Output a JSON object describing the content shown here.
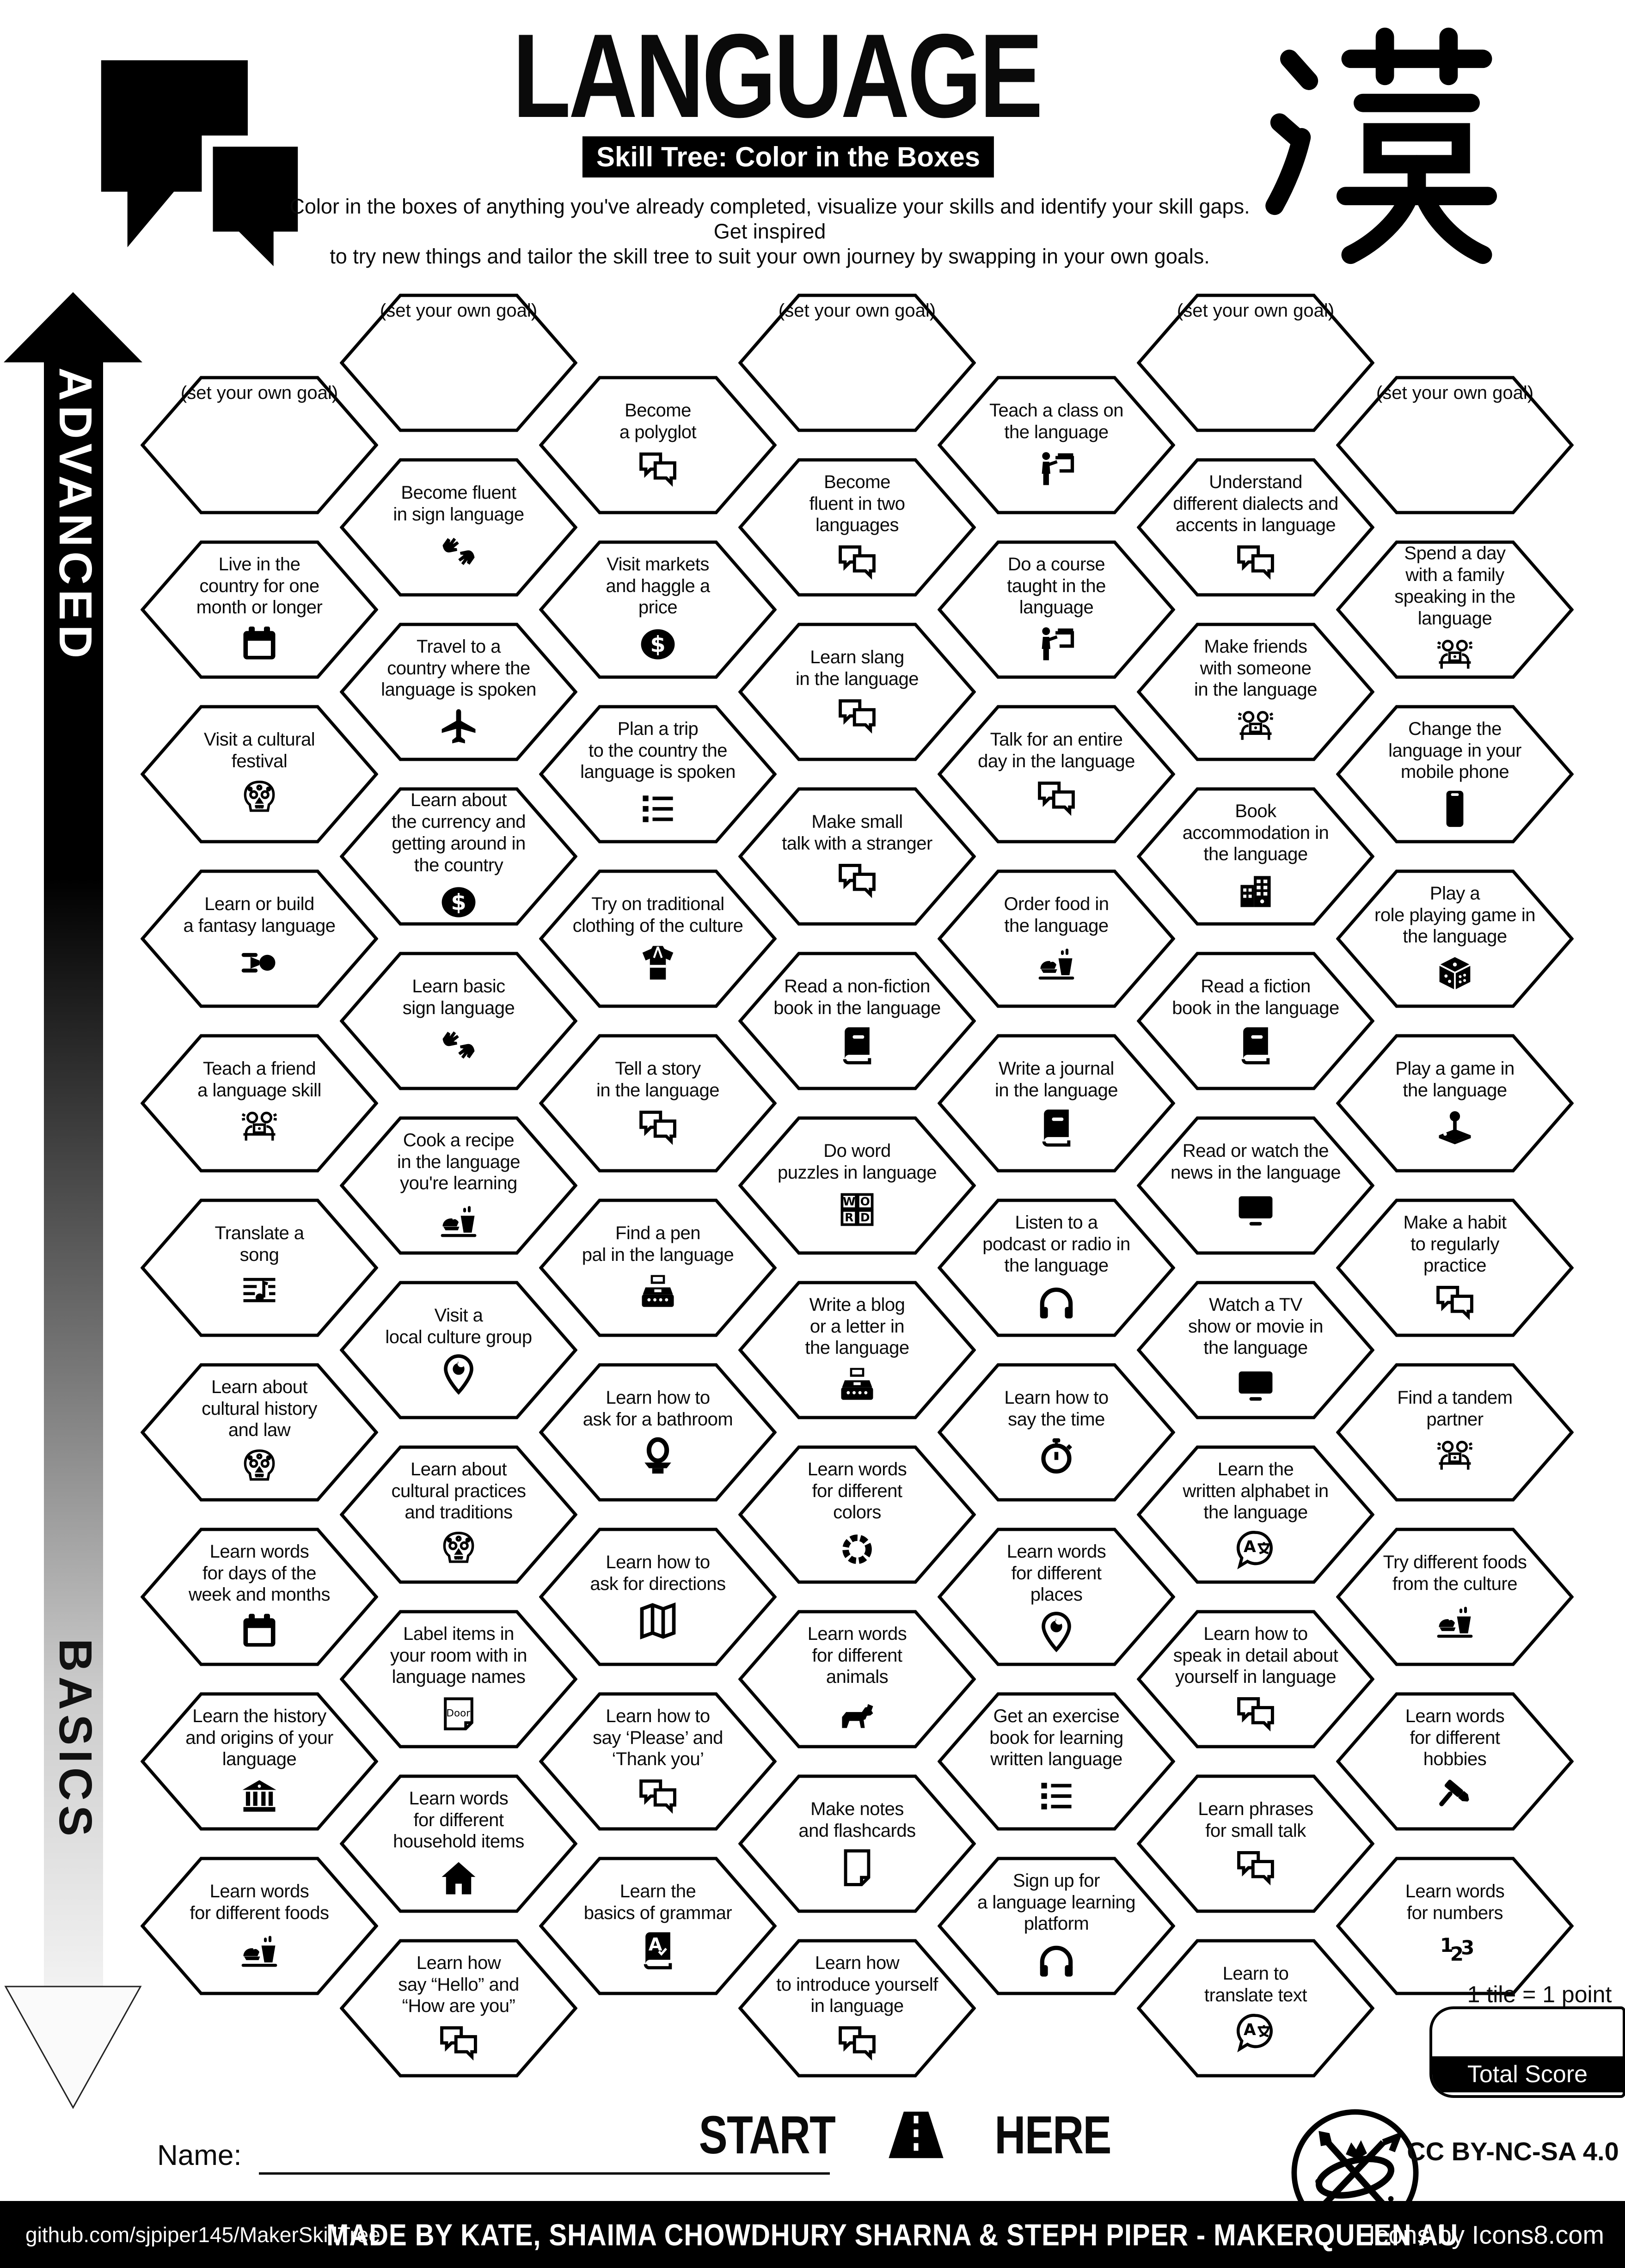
{
  "colors": {
    "ink": "#000000",
    "paper": "#ffffff"
  },
  "header": {
    "title": "LANGUAGE",
    "subtitle": "Skill Tree: Color in the Boxes",
    "description_line1": "Color in the boxes of anything you've already completed, visualize your skills and identify your skill gaps.  Get inspired",
    "description_line2": "to try new things and tailor the skill tree to suit your own journey by swapping in your own goals.",
    "kanji": "漢",
    "logo_icon": "speech-bubbles-logo"
  },
  "axis": {
    "top_label": "ADVANCED",
    "bottom_label": "BASICS"
  },
  "goal_label": "(set your own goal)",
  "start_here": {
    "start": "START",
    "here": "HERE",
    "icon": "road-icon"
  },
  "name_field": {
    "label": "Name:",
    "value": ""
  },
  "scoring": {
    "note": "1 tile = 1 point",
    "total_label": "Total Score",
    "total_value": ""
  },
  "footer": {
    "github": "github.com/sjpiper145/MakerSkillTree",
    "credit": "MADE BY KATE, SHAIMA CHOWDHURY SHARNA & STEPH PIPER  -  MAKERQUEEN AU",
    "license": "CC BY-NC-SA 4.0",
    "icons_credit": "Icons by Icons8.com",
    "badge_icon": "maker-tools-badge"
  },
  "hexes": [
    {
      "c": 0,
      "r": 0,
      "goal": true
    },
    {
      "c": 0,
      "r": 1,
      "label": "Live in the\ncountry for one\nmonth or longer",
      "icon": "calendar-icon"
    },
    {
      "c": 0,
      "r": 2,
      "label": "Visit a cultural\nfestival",
      "icon": "sugar-skull-icon"
    },
    {
      "c": 0,
      "r": 3,
      "label": "Learn or build\na fantasy language",
      "icon": "spaceship-icon"
    },
    {
      "c": 0,
      "r": 4,
      "label": "Teach a friend\na language skill",
      "icon": "tandem-partners-icon"
    },
    {
      "c": 0,
      "r": 5,
      "label": "Translate a\nsong",
      "icon": "sheet-music-icon"
    },
    {
      "c": 0,
      "r": 6,
      "label": "Learn about\ncultural history\nand law",
      "icon": "sugar-skull-icon"
    },
    {
      "c": 0,
      "r": 7,
      "label": "Learn words\nfor days of the\nweek and months",
      "icon": "calendar-icon"
    },
    {
      "c": 0,
      "r": 8,
      "label": "Learn the history\nand origins of your\nlanguage",
      "icon": "museum-icon"
    },
    {
      "c": 0,
      "r": 9,
      "label": "Learn words\nfor different foods",
      "icon": "food-icon"
    },
    {
      "c": 1,
      "r": 0,
      "goal": true
    },
    {
      "c": 1,
      "r": 1,
      "label": "Become fluent\nin sign language",
      "icon": "sign-language-icon"
    },
    {
      "c": 1,
      "r": 2,
      "label": "Travel to a\ncountry where the\nlanguage is spoken",
      "icon": "plane-icon"
    },
    {
      "c": 1,
      "r": 3,
      "label": "Learn about\nthe currency and\ngetting around in\nthe country",
      "icon": "dollar-coin-icon"
    },
    {
      "c": 1,
      "r": 4,
      "label": "Learn basic\nsign language",
      "icon": "sign-language-icon"
    },
    {
      "c": 1,
      "r": 5,
      "label": "Cook a recipe\nin the language\nyou're learning",
      "icon": "food-icon"
    },
    {
      "c": 1,
      "r": 6,
      "label": "Visit a\nlocal culture group",
      "icon": "location-pin-icon"
    },
    {
      "c": 1,
      "r": 7,
      "label": "Learn about\ncultural practices\nand traditions",
      "icon": "sugar-skull-icon"
    },
    {
      "c": 1,
      "r": 8,
      "label": "Label items in\nyour room with in\nlanguage names",
      "icon": "door-note-icon"
    },
    {
      "c": 1,
      "r": 9,
      "label": "Learn words\nfor different\nhousehold items",
      "icon": "house-icon"
    },
    {
      "c": 1,
      "r": 10,
      "label": "Learn how\nsay “Hello” and\n“How are you”",
      "icon": "chat-icon"
    },
    {
      "c": 2,
      "r": 0,
      "label": "Become\na polyglot",
      "icon": "chat-icon"
    },
    {
      "c": 2,
      "r": 1,
      "label": "Visit markets\nand haggle a\nprice",
      "icon": "dollar-coin-icon"
    },
    {
      "c": 2,
      "r": 2,
      "label": "Plan a trip\nto the country the\nlanguage is spoken",
      "icon": "checklist-icon"
    },
    {
      "c": 2,
      "r": 3,
      "label": "Try on traditional\nclothing of the culture",
      "icon": "kimono-icon"
    },
    {
      "c": 2,
      "r": 4,
      "label": "Tell a story\nin the language",
      "icon": "chat-icon"
    },
    {
      "c": 2,
      "r": 5,
      "label": "Find a pen\npal in the language",
      "icon": "typewriter-icon"
    },
    {
      "c": 2,
      "r": 6,
      "label": "Learn how to\nask for a bathroom",
      "icon": "toilet-icon"
    },
    {
      "c": 2,
      "r": 7,
      "label": "Learn how to\nask for directions",
      "icon": "map-icon"
    },
    {
      "c": 2,
      "r": 8,
      "label": "Learn how to\nsay ‘Please’ and\n‘Thank you’",
      "icon": "chat-icon"
    },
    {
      "c": 2,
      "r": 9,
      "label": "Learn the\nbasics of grammar",
      "icon": "grammar-book-icon"
    },
    {
      "c": 3,
      "r": 0,
      "goal": true
    },
    {
      "c": 3,
      "r": 1,
      "label": "Become\nfluent in two\nlanguages",
      "icon": "chat-icon"
    },
    {
      "c": 3,
      "r": 2,
      "label": "Learn slang\nin the language",
      "icon": "chat-icon"
    },
    {
      "c": 3,
      "r": 3,
      "label": "Make small\ntalk with a stranger",
      "icon": "chat-icon"
    },
    {
      "c": 3,
      "r": 4,
      "label": "Read a non-fiction\nbook in the language",
      "icon": "book-icon"
    },
    {
      "c": 3,
      "r": 5,
      "label": "Do word\npuzzles in language",
      "icon": "word-blocks-icon"
    },
    {
      "c": 3,
      "r": 6,
      "label": "Write a blog\nor a letter in\nthe language",
      "icon": "typewriter-icon"
    },
    {
      "c": 3,
      "r": 7,
      "label": "Learn words\nfor different\ncolors",
      "icon": "color-wheel-icon"
    },
    {
      "c": 3,
      "r": 8,
      "label": "Learn words\nfor different\nanimals",
      "icon": "dog-icon"
    },
    {
      "c": 3,
      "r": 9,
      "label": "Make notes\nand flashcards",
      "icon": "flashcard-icon"
    },
    {
      "c": 3,
      "r": 10,
      "label": "Learn how\nto introduce yourself\nin language",
      "icon": "chat-icon"
    },
    {
      "c": 4,
      "r": 0,
      "label": "Teach a class on\nthe language",
      "icon": "teacher-icon"
    },
    {
      "c": 4,
      "r": 1,
      "label": "Do a course\ntaught in the\nlanguage",
      "icon": "teacher-icon"
    },
    {
      "c": 4,
      "r": 2,
      "label": "Talk for an entire\nday in the language",
      "icon": "chat-icon"
    },
    {
      "c": 4,
      "r": 3,
      "label": "Order food in\nthe language",
      "icon": "food-icon"
    },
    {
      "c": 4,
      "r": 4,
      "label": "Write a journal\nin the language",
      "icon": "book-icon"
    },
    {
      "c": 4,
      "r": 5,
      "label": "Listen to a\npodcast or radio in\nthe language",
      "icon": "headphones-icon"
    },
    {
      "c": 4,
      "r": 6,
      "label": "Learn how to\nsay the time",
      "icon": "stopwatch-icon"
    },
    {
      "c": 4,
      "r": 7,
      "label": "Learn words\nfor different\nplaces",
      "icon": "location-pin-icon"
    },
    {
      "c": 4,
      "r": 8,
      "label": "Get an exercise\nbook for learning\nwritten language",
      "icon": "checklist-icon"
    },
    {
      "c": 4,
      "r": 9,
      "label": "Sign up for\na language learning\nplatform",
      "icon": "headphones-icon"
    },
    {
      "c": 5,
      "r": 0,
      "goal": true
    },
    {
      "c": 5,
      "r": 1,
      "label": "Understand\ndifferent dialects and\naccents in language",
      "icon": "chat-icon"
    },
    {
      "c": 5,
      "r": 2,
      "label": "Make friends\nwith someone\nin the language",
      "icon": "tandem-partners-icon"
    },
    {
      "c": 5,
      "r": 3,
      "label": "Book\naccommodation in\nthe language",
      "icon": "hotel-icon"
    },
    {
      "c": 5,
      "r": 4,
      "label": "Read a fiction\nbook in the language",
      "icon": "book-icon"
    },
    {
      "c": 5,
      "r": 5,
      "label": "Read or watch the\nnews in the language",
      "icon": "tv-icon"
    },
    {
      "c": 5,
      "r": 6,
      "label": "Watch a TV\nshow or movie in\nthe language",
      "icon": "tv-icon"
    },
    {
      "c": 5,
      "r": 7,
      "label": "Learn the\nwritten alphabet in\nthe language",
      "icon": "translate-icon"
    },
    {
      "c": 5,
      "r": 8,
      "label": "Learn how to\nspeak in detail about\nyourself in language",
      "icon": "chat-icon"
    },
    {
      "c": 5,
      "r": 9,
      "label": "Learn phrases\nfor small talk",
      "icon": "chat-icon"
    },
    {
      "c": 5,
      "r": 10,
      "label": "Learn to\ntranslate text",
      "icon": "translate-icon"
    },
    {
      "c": 6,
      "r": 0,
      "goal": true
    },
    {
      "c": 6,
      "r": 1,
      "label": "Spend a day\nwith a family\nspeaking in the language",
      "icon": "tandem-partners-icon"
    },
    {
      "c": 6,
      "r": 2,
      "label": "Change the\nlanguage in your\nmobile phone",
      "icon": "phone-icon"
    },
    {
      "c": 6,
      "r": 3,
      "label": "Play a\nrole playing game in\nthe language",
      "icon": "dice-icon"
    },
    {
      "c": 6,
      "r": 4,
      "label": "Play a game in\nthe language",
      "icon": "joystick-icon"
    },
    {
      "c": 6,
      "r": 5,
      "label": "Make a habit\nto regularly\npractice",
      "icon": "chat-icon"
    },
    {
      "c": 6,
      "r": 6,
      "label": "Find a tandem\npartner",
      "icon": "tandem-partners-icon"
    },
    {
      "c": 6,
      "r": 7,
      "label": "Try different foods\nfrom the culture",
      "icon": "food-icon"
    },
    {
      "c": 6,
      "r": 8,
      "label": "Learn words\nfor different\nhobbies",
      "icon": "hammer-icon"
    },
    {
      "c": 6,
      "r": 9,
      "label": "Learn words\nfor numbers",
      "icon": "numbers-icon"
    }
  ]
}
